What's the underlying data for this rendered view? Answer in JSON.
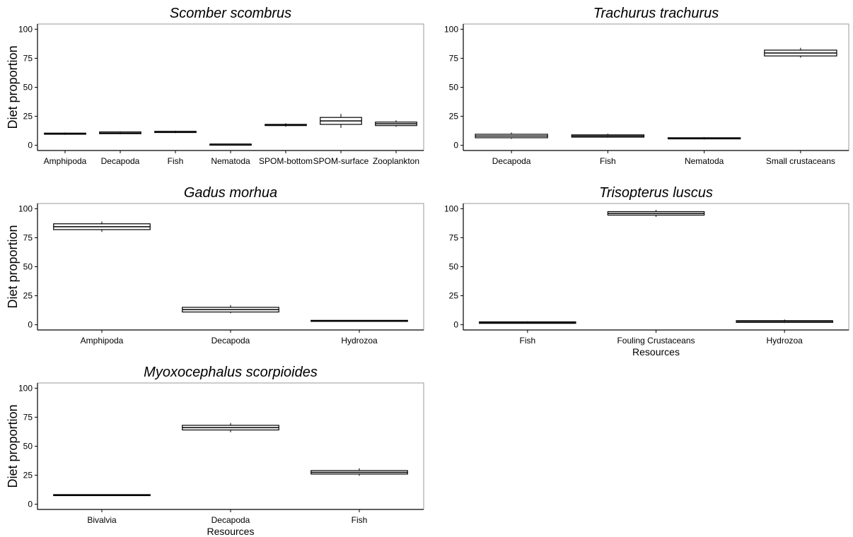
{
  "figure": {
    "y_axis_label": "Diet proportion",
    "x_axis_label": "Resources"
  },
  "chart_data": [
    {
      "type": "box",
      "title": "Scomber scombrus",
      "ylabel": "Diet proportion",
      "xlabel": "",
      "ylim": [
        0,
        100
      ],
      "yticks": [
        0,
        25,
        50,
        75,
        100
      ],
      "grid": false,
      "categories": [
        "Amphipoda",
        "Decapoda",
        "Fish",
        "Nematoda",
        "SPOM-bottom",
        "SPOM-surface",
        "Zooplankton"
      ],
      "boxes": [
        {
          "min": 9,
          "q1": 9.5,
          "median": 10,
          "q3": 10.5,
          "max": 11
        },
        {
          "min": 9.5,
          "q1": 10,
          "median": 10.5,
          "q3": 11.5,
          "max": 12
        },
        {
          "min": 10.5,
          "q1": 11,
          "median": 11.5,
          "q3": 12,
          "max": 12.5
        },
        {
          "min": 1,
          "q1": 1,
          "median": 1,
          "q3": 1,
          "max": 1
        },
        {
          "min": 16,
          "q1": 17,
          "median": 17.5,
          "q3": 18,
          "max": 19
        },
        {
          "min": 15,
          "q1": 18,
          "median": 21,
          "q3": 24,
          "max": 27
        },
        {
          "min": 16,
          "q1": 17,
          "median": 18.5,
          "q3": 20,
          "max": 21.5
        }
      ]
    },
    {
      "type": "box",
      "title": "Trachurus trachurus",
      "ylabel": "",
      "xlabel": "",
      "ylim": [
        0,
        100
      ],
      "yticks": [
        0,
        25,
        50,
        75,
        100
      ],
      "grid": false,
      "categories": [
        "Decapoda",
        "Fish",
        "Nematoda",
        "Small crustaceans"
      ],
      "boxes": [
        {
          "min": 5.5,
          "q1": 6.5,
          "median": 8,
          "q3": 9.5,
          "max": 11
        },
        {
          "min": 6.5,
          "q1": 7,
          "median": 8,
          "q3": 9,
          "max": 10
        },
        {
          "min": 5,
          "q1": 5.5,
          "median": 6,
          "q3": 6.5,
          "max": 7
        },
        {
          "min": 75.5,
          "q1": 77,
          "median": 79.5,
          "q3": 82,
          "max": 84
        }
      ]
    },
    {
      "type": "box",
      "title": "Gadus morhua",
      "ylabel": "Diet proportion",
      "xlabel": "",
      "ylim": [
        0,
        100
      ],
      "yticks": [
        0,
        25,
        50,
        75,
        100
      ],
      "grid": false,
      "categories": [
        "Amphipoda",
        "Decapoda",
        "Hydrozoa"
      ],
      "boxes": [
        {
          "min": 80,
          "q1": 82,
          "median": 84.5,
          "q3": 87,
          "max": 89
        },
        {
          "min": 10,
          "q1": 11,
          "median": 13,
          "q3": 15,
          "max": 17
        },
        {
          "min": 3,
          "q1": 3.2,
          "median": 3.5,
          "q3": 3.8,
          "max": 4
        }
      ]
    },
    {
      "type": "box",
      "title": "Trisopterus luscus",
      "ylabel": "",
      "xlabel": "Resources",
      "ylim": [
        0,
        100
      ],
      "yticks": [
        0,
        25,
        50,
        75,
        100
      ],
      "grid": false,
      "categories": [
        "Fish",
        "Fouling Crustaceans",
        "Hydrozoa"
      ],
      "boxes": [
        {
          "min": 1,
          "q1": 1.2,
          "median": 1.8,
          "q3": 2.5,
          "max": 3
        },
        {
          "min": 93,
          "q1": 94.5,
          "median": 96,
          "q3": 97.5,
          "max": 99
        },
        {
          "min": 1.5,
          "q1": 2,
          "median": 3,
          "q3": 3.5,
          "max": 4.5
        }
      ]
    },
    {
      "type": "box",
      "title": "Myoxocephalus scorpioides",
      "ylabel": "Diet proportion",
      "xlabel": "Resources",
      "ylim": [
        0,
        100
      ],
      "yticks": [
        0,
        25,
        50,
        75,
        100
      ],
      "grid": false,
      "categories": [
        "Bivalvia",
        "Decapoda",
        "Fish"
      ],
      "boxes": [
        {
          "min": 7.5,
          "q1": 7.8,
          "median": 8,
          "q3": 8.3,
          "max": 8.6
        },
        {
          "min": 62,
          "q1": 64,
          "median": 66,
          "q3": 68,
          "max": 70
        },
        {
          "min": 24.5,
          "q1": 26,
          "median": 27.5,
          "q3": 29,
          "max": 31
        }
      ]
    }
  ]
}
